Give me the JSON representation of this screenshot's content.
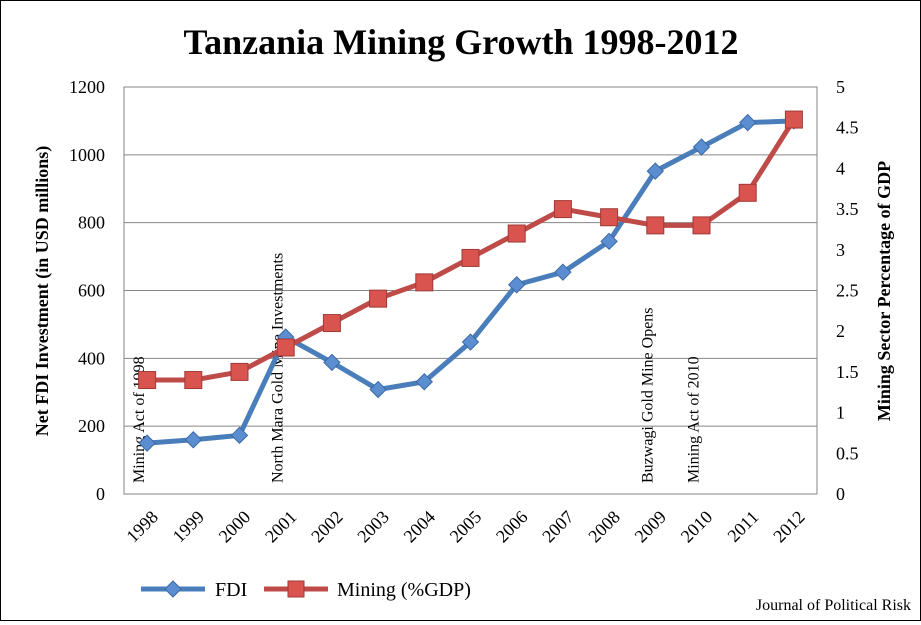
{
  "chart_data": {
    "type": "line",
    "title": "Tanzania Mining Growth 1998-2012",
    "categories": [
      "1998",
      "1999",
      "2000",
      "2001",
      "2002",
      "2003",
      "2004",
      "2005",
      "2006",
      "2007",
      "2008",
      "2009",
      "2010",
      "2011",
      "2012"
    ],
    "series": [
      {
        "name": "FDI",
        "axis": "left",
        "color": "#4a7ebb",
        "marker": "diamond",
        "values": [
          150,
          160,
          173,
          463,
          388,
          308,
          331,
          448,
          617,
          654,
          745,
          952,
          1023,
          1095,
          1100
        ]
      },
      {
        "name": "Mining (%GDP)",
        "axis": "right",
        "color": "#be4b48",
        "marker": "square",
        "values": [
          1.4,
          1.4,
          1.5,
          1.8,
          2.1,
          2.4,
          2.6,
          2.9,
          3.2,
          3.5,
          3.4,
          3.3,
          3.3,
          3.7,
          4.6
        ]
      }
    ],
    "ylabel": "Net FDI Investment (in USD millions)",
    "y2label": "Mining Sector Percentage of GDP",
    "ylim": [
      0,
      1200
    ],
    "y2lim": [
      0,
      5
    ],
    "yticks": [
      "0",
      "200",
      "400",
      "600",
      "800",
      "1000",
      "1200"
    ],
    "y2ticks": [
      "0",
      "0.5",
      "1",
      "1.5",
      "2",
      "2.5",
      "3",
      "3.5",
      "4",
      "4.5",
      "5"
    ],
    "grid": true,
    "legend_position": "bottom-left",
    "annotations": [
      {
        "category": "1998",
        "text": "Mining Act of 1998"
      },
      {
        "category": "2001",
        "text": "North Mara Gold Mine Investments"
      },
      {
        "category": "2009",
        "text": "Buzwagi Gold Mine Opens"
      },
      {
        "category": "2010",
        "text": "Mining Act of 2010"
      }
    ],
    "credit": "Journal of Political Risk"
  }
}
